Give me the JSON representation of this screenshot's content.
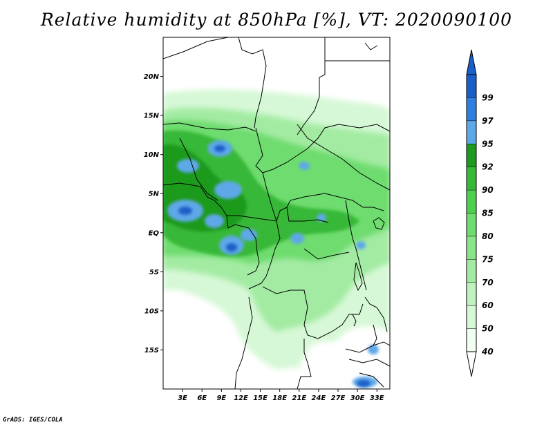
{
  "title": "Relative humidity at 850hPa [%], VT: 2020090100",
  "footer": "GrADS: IGES/COLA",
  "map": {
    "lon_range": [
      0,
      35
    ],
    "lat_range": [
      -20,
      25
    ],
    "lat_ticks": [
      {
        "lat": 20,
        "label": "20N"
      },
      {
        "lat": 15,
        "label": "15N"
      },
      {
        "lat": 10,
        "label": "10N"
      },
      {
        "lat": 5,
        "label": "5N"
      },
      {
        "lat": 0,
        "label": "EQ"
      },
      {
        "lat": -5,
        "label": "5S"
      },
      {
        "lat": -10,
        "label": "10S"
      },
      {
        "lat": -15,
        "label": "15S"
      }
    ],
    "lon_ticks": [
      {
        "lon": 3,
        "label": "3E"
      },
      {
        "lon": 6,
        "label": "6E"
      },
      {
        "lon": 9,
        "label": "9E"
      },
      {
        "lon": 12,
        "label": "12E"
      },
      {
        "lon": 15,
        "label": "15E"
      },
      {
        "lon": 18,
        "label": "18E"
      },
      {
        "lon": 21,
        "label": "21E"
      },
      {
        "lon": 24,
        "label": "24E"
      },
      {
        "lon": 27,
        "label": "27E"
      },
      {
        "lon": 30,
        "label": "30E"
      },
      {
        "lon": 33,
        "label": "33E"
      }
    ]
  },
  "colorbar": {
    "levels": [
      {
        "label": "40",
        "color": "#f0fff0"
      },
      {
        "label": "50",
        "color": "#d6f8d6"
      },
      {
        "label": "60",
        "color": "#bff2bf"
      },
      {
        "label": "70",
        "color": "#a3eba3"
      },
      {
        "label": "75",
        "color": "#8ae48a"
      },
      {
        "label": "80",
        "color": "#6edc6e"
      },
      {
        "label": "85",
        "color": "#4fcf4f"
      },
      {
        "label": "90",
        "color": "#37b837"
      },
      {
        "label": "92",
        "color": "#1f9a1f"
      },
      {
        "label": "95",
        "color": "#5fa8e8"
      },
      {
        "label": "97",
        "color": "#2f7fe0"
      },
      {
        "label": "99",
        "color": "#1a5fc8"
      }
    ],
    "top_arrow_color": "#1a5fc8",
    "bottom_arrow_color": "#ffffff"
  },
  "colors": {
    "land_dry": "#ffffff",
    "border": "#000000"
  }
}
